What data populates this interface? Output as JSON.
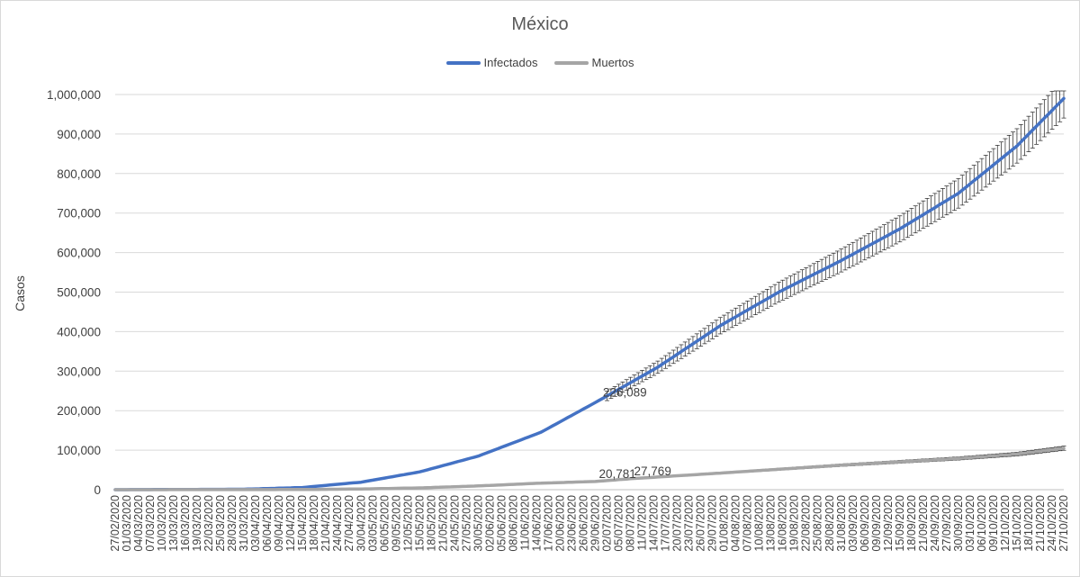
{
  "chart_data": {
    "type": "line",
    "title": "México",
    "xlabel": "",
    "ylabel": "Casos",
    "ylim": [
      0,
      1000000
    ],
    "y_ticks": [
      "0",
      "100,000",
      "200,000",
      "300,000",
      "400,000",
      "500,000",
      "600,000",
      "700,000",
      "800,000",
      "900,000",
      "1,000,000"
    ],
    "x_range": [
      "27/02/2020",
      "27/10/2020"
    ],
    "x_tick_labels": [
      "27/02/2020",
      "01/03/2020",
      "04/03/2020",
      "07/03/2020",
      "10/03/2020",
      "13/03/2020",
      "16/03/2020",
      "19/03/2020",
      "22/03/2020",
      "25/03/2020",
      "28/03/2020",
      "31/03/2020",
      "03/04/2020",
      "06/04/2020",
      "09/04/2020",
      "12/04/2020",
      "15/04/2020",
      "18/04/2020",
      "21/04/2020",
      "24/04/2020",
      "27/04/2020",
      "30/04/2020",
      "03/05/2020",
      "06/05/2020",
      "09/05/2020",
      "12/05/2020",
      "15/05/2020",
      "18/05/2020",
      "21/05/2020",
      "24/05/2020",
      "27/05/2020",
      "30/05/2020",
      "02/06/2020",
      "05/06/2020",
      "08/06/2020",
      "11/06/2020",
      "14/06/2020",
      "17/06/2020",
      "20/06/2020",
      "23/06/2020",
      "26/06/2020",
      "29/06/2020",
      "02/07/2020",
      "05/07/2020",
      "08/07/2020",
      "11/07/2020",
      "14/07/2020",
      "17/07/2020",
      "20/07/2020",
      "23/07/2020",
      "26/07/2020",
      "29/07/2020",
      "01/08/2020",
      "04/08/2020",
      "07/08/2020",
      "10/08/2020",
      "13/08/2020",
      "16/08/2020",
      "19/08/2020",
      "22/08/2020",
      "25/08/2020",
      "28/08/2020",
      "31/08/2020",
      "03/09/2020",
      "06/09/2020",
      "09/09/2020",
      "12/09/2020",
      "15/09/2020",
      "18/09/2020",
      "21/09/2020",
      "24/09/2020",
      "27/09/2020",
      "30/09/2020",
      "03/10/2020",
      "06/10/2020",
      "09/10/2020",
      "12/10/2020",
      "15/10/2020",
      "18/10/2020",
      "21/10/2020",
      "24/10/2020",
      "27/10/2020"
    ],
    "grid": true,
    "legend_position": "top",
    "series": [
      {
        "name": "Infectados",
        "color": "#4472c4",
        "points": [
          [
            "27/02/2020",
            0
          ],
          [
            "31/03/2020",
            1200
          ],
          [
            "15/04/2020",
            5500
          ],
          [
            "30/04/2020",
            19000
          ],
          [
            "15/05/2020",
            45000
          ],
          [
            "30/05/2020",
            85000
          ],
          [
            "15/06/2020",
            145000
          ],
          [
            "30/06/2020",
            226089
          ],
          [
            "15/07/2020",
            310000
          ],
          [
            "31/07/2020",
            415000
          ],
          [
            "15/08/2020",
            500000
          ],
          [
            "31/08/2020",
            580000
          ],
          [
            "15/09/2020",
            660000
          ],
          [
            "30/09/2020",
            750000
          ],
          [
            "15/10/2020",
            870000
          ],
          [
            "27/10/2020",
            990000
          ]
        ],
        "error_bars_from": "02/07/2020",
        "error_bar_fraction": 0.05
      },
      {
        "name": "Muertos",
        "color": "#a5a5a5",
        "points": [
          [
            "27/02/2020",
            0
          ],
          [
            "15/04/2020",
            400
          ],
          [
            "30/04/2020",
            1800
          ],
          [
            "15/05/2020",
            4500
          ],
          [
            "30/05/2020",
            9500
          ],
          [
            "15/06/2020",
            16500
          ],
          [
            "29/06/2020",
            20781
          ],
          [
            "08/07/2020",
            27769
          ],
          [
            "31/07/2020",
            42000
          ],
          [
            "31/08/2020",
            62000
          ],
          [
            "30/09/2020",
            79000
          ],
          [
            "15/10/2020",
            90000
          ],
          [
            "27/10/2020",
            105000
          ]
        ],
        "error_bars_from": "02/07/2020",
        "error_bar_fraction": 0.05
      }
    ],
    "annotations": [
      {
        "series": "Infectados",
        "x": "30/06/2020",
        "y": 226089,
        "text": "226,089"
      },
      {
        "series": "Muertos",
        "x": "29/06/2020",
        "y": 20781,
        "text": "20,781"
      },
      {
        "series": "Muertos",
        "x": "08/07/2020",
        "y": 27769,
        "text": "27,769"
      }
    ]
  }
}
